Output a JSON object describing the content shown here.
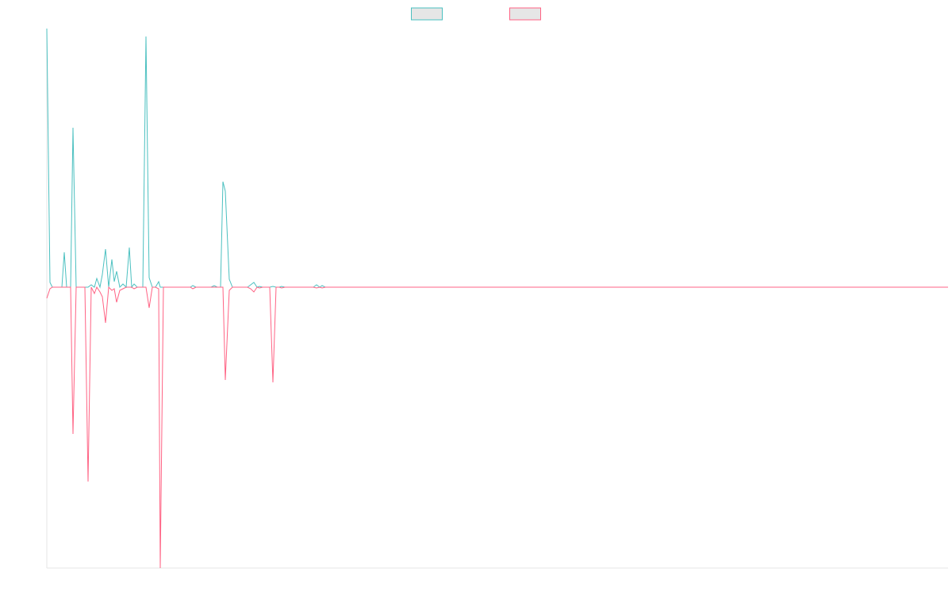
{
  "chart_data": {
    "type": "line",
    "x": [
      0,
      4,
      7,
      19,
      22,
      25,
      30,
      33,
      37,
      48,
      52,
      56,
      60,
      63,
      67,
      70,
      74,
      78,
      82,
      85,
      88,
      92,
      96,
      100,
      104,
      107,
      110,
      114,
      121,
      125,
      129,
      133,
      137,
      141,
      143,
      147,
      181,
      184,
      188,
      207,
      211,
      215,
      219,
      222,
      225,
      230,
      234,
      253,
      257,
      261,
      265,
      268,
      272,
      281,
      285,
      289,
      293,
      296,
      300,
      336,
      340,
      344,
      347,
      351,
      1136
    ],
    "series": [
      {
        "color": "#4bc0c0",
        "values": [
          326,
          6,
          0,
          0,
          44,
          0,
          0,
          201,
          0,
          0,
          0,
          3,
          0,
          11,
          0,
          16,
          48,
          0,
          35,
          7,
          20,
          0,
          4,
          0,
          50,
          0,
          4,
          0,
          0,
          316,
          12,
          0,
          0,
          7,
          0,
          0,
          0,
          2,
          0,
          0,
          2,
          0,
          0,
          133,
          121,
          10,
          0,
          0,
          3,
          6,
          0,
          1,
          0,
          0,
          1,
          0,
          0,
          1,
          0,
          0,
          3,
          0,
          2,
          0,
          0
        ]
      },
      {
        "color": "#ff6384",
        "values": [
          -14,
          -2,
          0,
          0,
          0,
          0,
          0,
          -185,
          0,
          0,
          -245,
          0,
          -8,
          0,
          -6,
          -12,
          -45,
          0,
          -4,
          -2,
          -19,
          -4,
          -2,
          0,
          0,
          0,
          -2,
          0,
          0,
          0,
          -26,
          0,
          0,
          -2,
          -354,
          0,
          0,
          -2,
          0,
          0,
          0,
          0,
          0,
          0,
          -117,
          -4,
          0,
          0,
          -2,
          -6,
          0,
          -1,
          0,
          0,
          -120,
          0,
          0,
          -1,
          0,
          0,
          -1,
          0,
          -1,
          0,
          0
        ]
      }
    ],
    "xlim": [
      0,
      1136
    ],
    "ylim": [
      -354,
      326
    ],
    "legend": "top"
  }
}
